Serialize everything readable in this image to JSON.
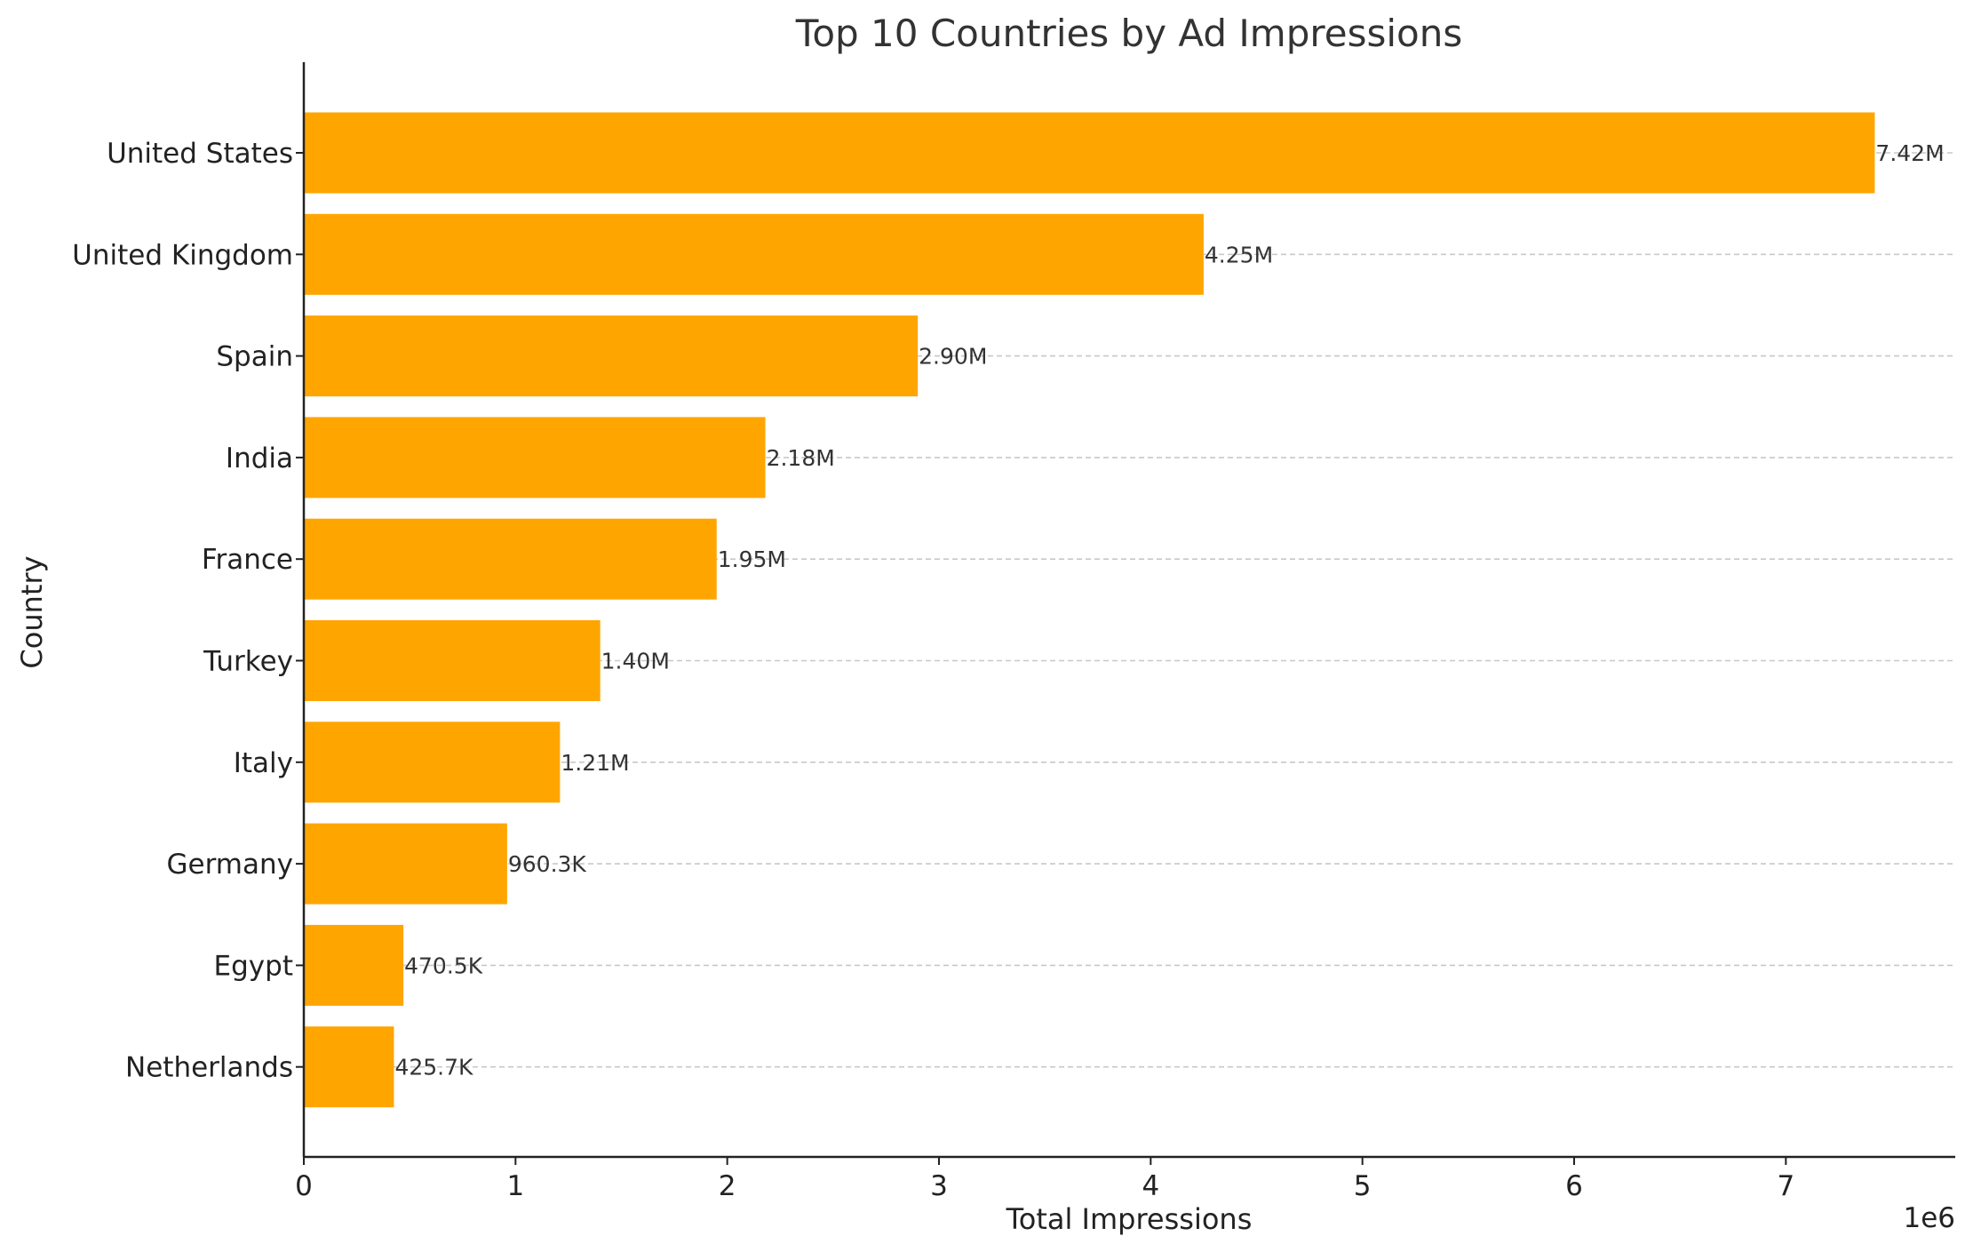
{
  "chart_data": {
    "type": "bar",
    "orientation": "horizontal",
    "title": "Top 10 Countries by Ad Impressions",
    "xlabel": "Total Impressions",
    "ylabel": "Country",
    "x_offset_label": "1e6",
    "xlim": [
      0,
      7.8
    ],
    "x_ticks": [
      0,
      1,
      2,
      3,
      4,
      5,
      6,
      7
    ],
    "x_tick_labels": [
      "0",
      "1",
      "2",
      "3",
      "4",
      "5",
      "6",
      "7"
    ],
    "grid": "horizontal dashed",
    "bar_color": "#FFA500",
    "categories": [
      "United States",
      "United Kingdom",
      "Spain",
      "India",
      "France",
      "Turkey",
      "Italy",
      "Germany",
      "Egypt",
      "Netherlands"
    ],
    "values": [
      7.42,
      4.25,
      2.9,
      2.18,
      1.95,
      1.4,
      1.21,
      0.9603,
      0.4705,
      0.4257
    ],
    "value_labels": [
      "7.42M",
      "4.25M",
      "2.90M",
      "2.18M",
      "1.95M",
      "1.40M",
      "1.21M",
      "960.3K",
      "470.5K",
      "425.7K"
    ]
  }
}
